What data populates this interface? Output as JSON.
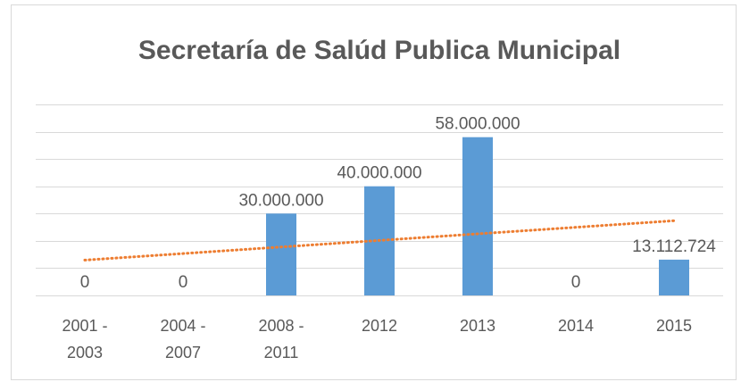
{
  "chart_data": {
    "type": "bar",
    "title": "Secretaría de Salúd Publica Municipal",
    "categories": [
      "2001 -\n2003",
      "2004 -\n2007",
      "2008 -\n2011",
      "2012",
      "2013",
      "2014",
      "2015"
    ],
    "values": [
      0,
      0,
      30000000,
      40000000,
      58000000,
      0,
      13112724
    ],
    "value_labels": [
      "0",
      "0",
      "30.000.000",
      "40.000.000",
      "58.000.000",
      "0",
      "13.112.724"
    ],
    "color": "#5b9bd5",
    "ylim": [
      0,
      70000000
    ],
    "yticks": [
      0,
      10000000,
      20000000,
      30000000,
      40000000,
      50000000,
      60000000,
      70000000
    ],
    "grid": true,
    "trendline": {
      "type": "linear",
      "color": "#ed7d31"
    }
  }
}
